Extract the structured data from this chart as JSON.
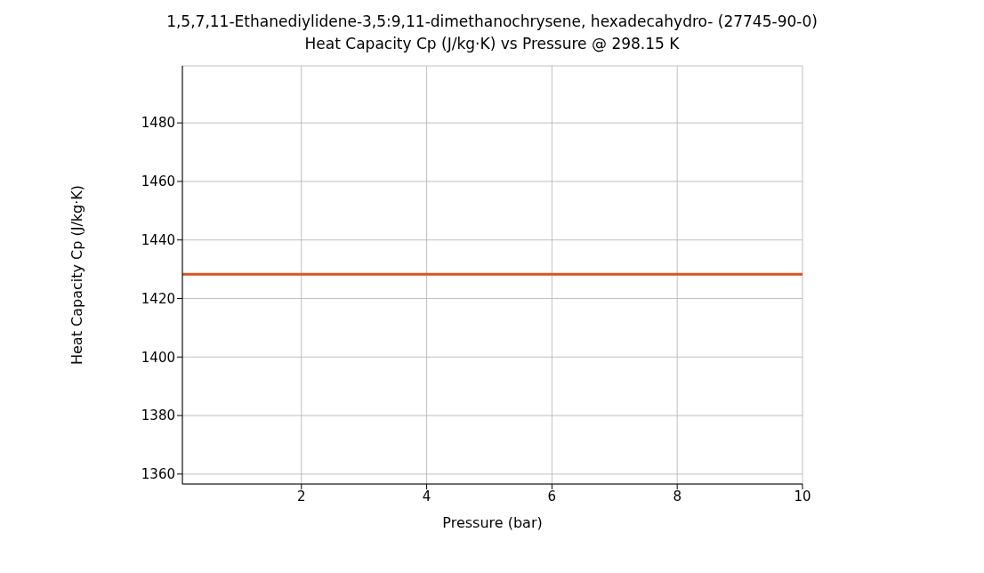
{
  "chart_data": {
    "type": "line",
    "title": "1,5,7,11-Ethanediylidene-3,5:9,11-dimethanochrysene, hexadecahydro- (27745-90-0)",
    "subtitle": "Heat Capacity Cp (J/kg·K) vs Pressure @ 298.15 K",
    "xlabel": "Pressure (bar)",
    "ylabel": "Heat Capacity Cp (J/kg·K)",
    "x": [
      0.1,
      10
    ],
    "series": [
      {
        "color": "#d9541f",
        "values": [
          1428.3,
          1428.3
        ]
      }
    ],
    "xlim": [
      0.1,
      10
    ],
    "xticks": [
      2,
      4,
      6,
      8,
      10
    ],
    "ylim": [
      1356.6,
      1499.5
    ],
    "yticks": [
      1360,
      1380,
      1400,
      1420,
      1440,
      1460,
      1480
    ],
    "grid": true,
    "marker": "none",
    "line_style": "solid"
  }
}
